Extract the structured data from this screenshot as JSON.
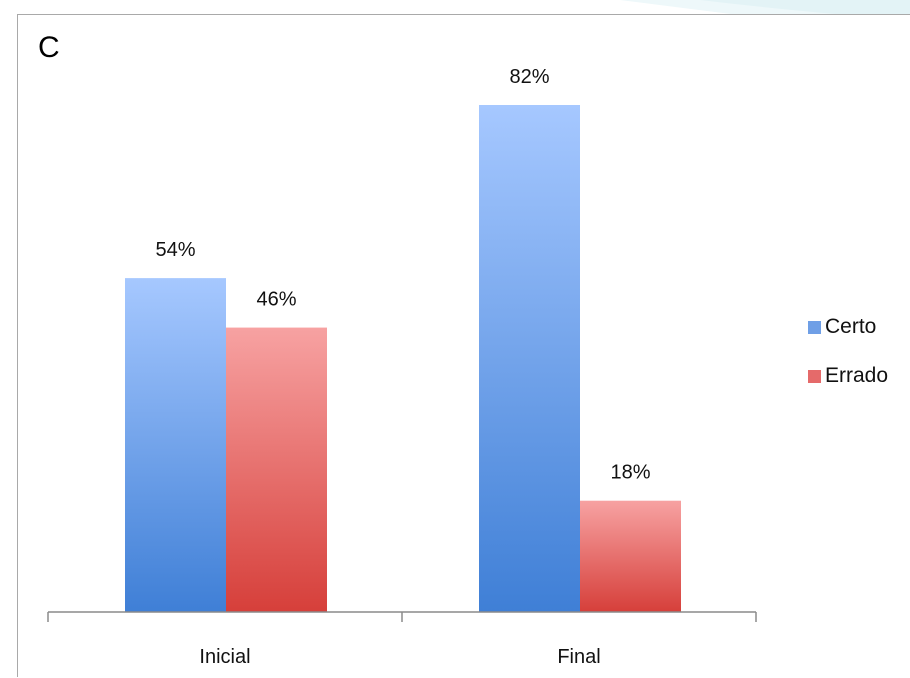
{
  "panel_label": "C",
  "chart_data": {
    "type": "bar",
    "categories": [
      "Inicial",
      "Final"
    ],
    "series": [
      {
        "name": "Certo",
        "values": [
          54,
          82
        ],
        "labels": [
          "54%",
          "82%"
        ],
        "color": "#6f9fe6"
      },
      {
        "name": "Errado",
        "values": [
          46,
          18
        ],
        "labels": [
          "46%",
          "18%"
        ],
        "color": "#e56a6a"
      }
    ],
    "ylim": [
      0,
      82
    ],
    "grid": false,
    "legend_position": "right",
    "title": "",
    "xlabel": "",
    "ylabel": ""
  },
  "colors": {
    "certo_top": "#a6c8ff",
    "certo_bottom": "#3f7fd6",
    "errado_top": "#f7a2a2",
    "errado_bottom": "#d63f3a",
    "axis": "#8a8a8a",
    "decoration": "#e6f4f7"
  }
}
